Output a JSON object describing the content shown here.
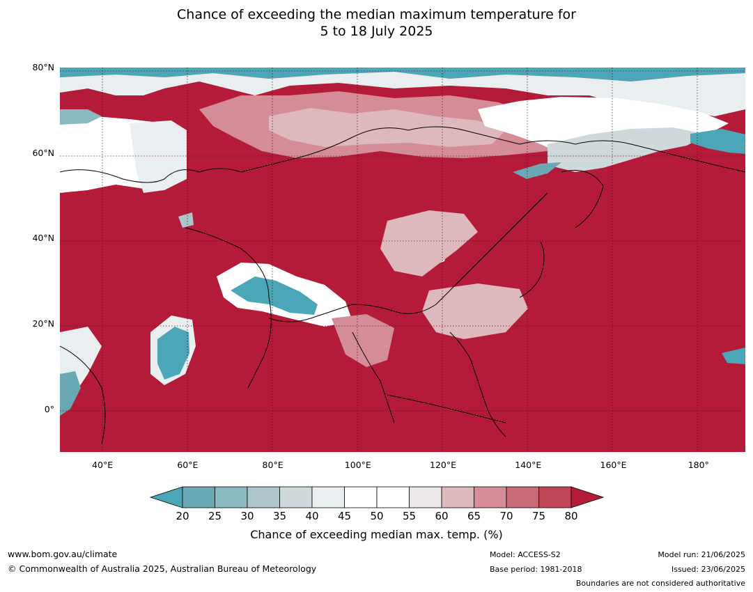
{
  "title": {
    "line1": "Chance of exceeding the median maximum temperature for",
    "line2": "5 to 18 July 2025"
  },
  "map": {
    "extent": {
      "lon_min": 30,
      "lon_max": 191,
      "lat_min": -10,
      "lat_max": 80
    },
    "latitude_labels": [
      "80°N",
      "60°N",
      "40°N",
      "20°N",
      "0°"
    ],
    "latitude_values": [
      80,
      60,
      40,
      20,
      0
    ],
    "longitude_labels": [
      "40°E",
      "60°E",
      "80°E",
      "100°E",
      "120°E",
      "140°E",
      "160°E",
      "180°"
    ],
    "longitude_values": [
      40,
      60,
      80,
      100,
      120,
      140,
      160,
      180
    ],
    "dominant_color": "#b31b39",
    "grid_lines": true
  },
  "colorbar": {
    "ticks": [
      "20",
      "25",
      "30",
      "35",
      "40",
      "45",
      "50",
      "55",
      "60",
      "65",
      "70",
      "75",
      "80"
    ],
    "colors": [
      "#4ba6b8",
      "#6aa8b5",
      "#8bb8c3",
      "#abc5cb",
      "#cfd8da",
      "#e9eef0",
      "#ffffff",
      "#ffffff",
      "#ece7e8",
      "#ddb8bd",
      "#d48d96",
      "#c96a76",
      "#bf4555",
      "#b31b39"
    ],
    "title": "Chance of exceeding median max. temp. (%)"
  },
  "footer": {
    "website": "www.bom.gov.au/climate",
    "copyright": "© Commonwealth of Australia 2025, Australian Bureau of Meteorology",
    "model": "Model: ACCESS-S2",
    "base_period": "Base period: 1981-2018",
    "model_run": "Model run: 21/06/2025",
    "issued": "Issued: 23/06/2025",
    "boundaries": "Boundaries are not considered authoritative"
  }
}
